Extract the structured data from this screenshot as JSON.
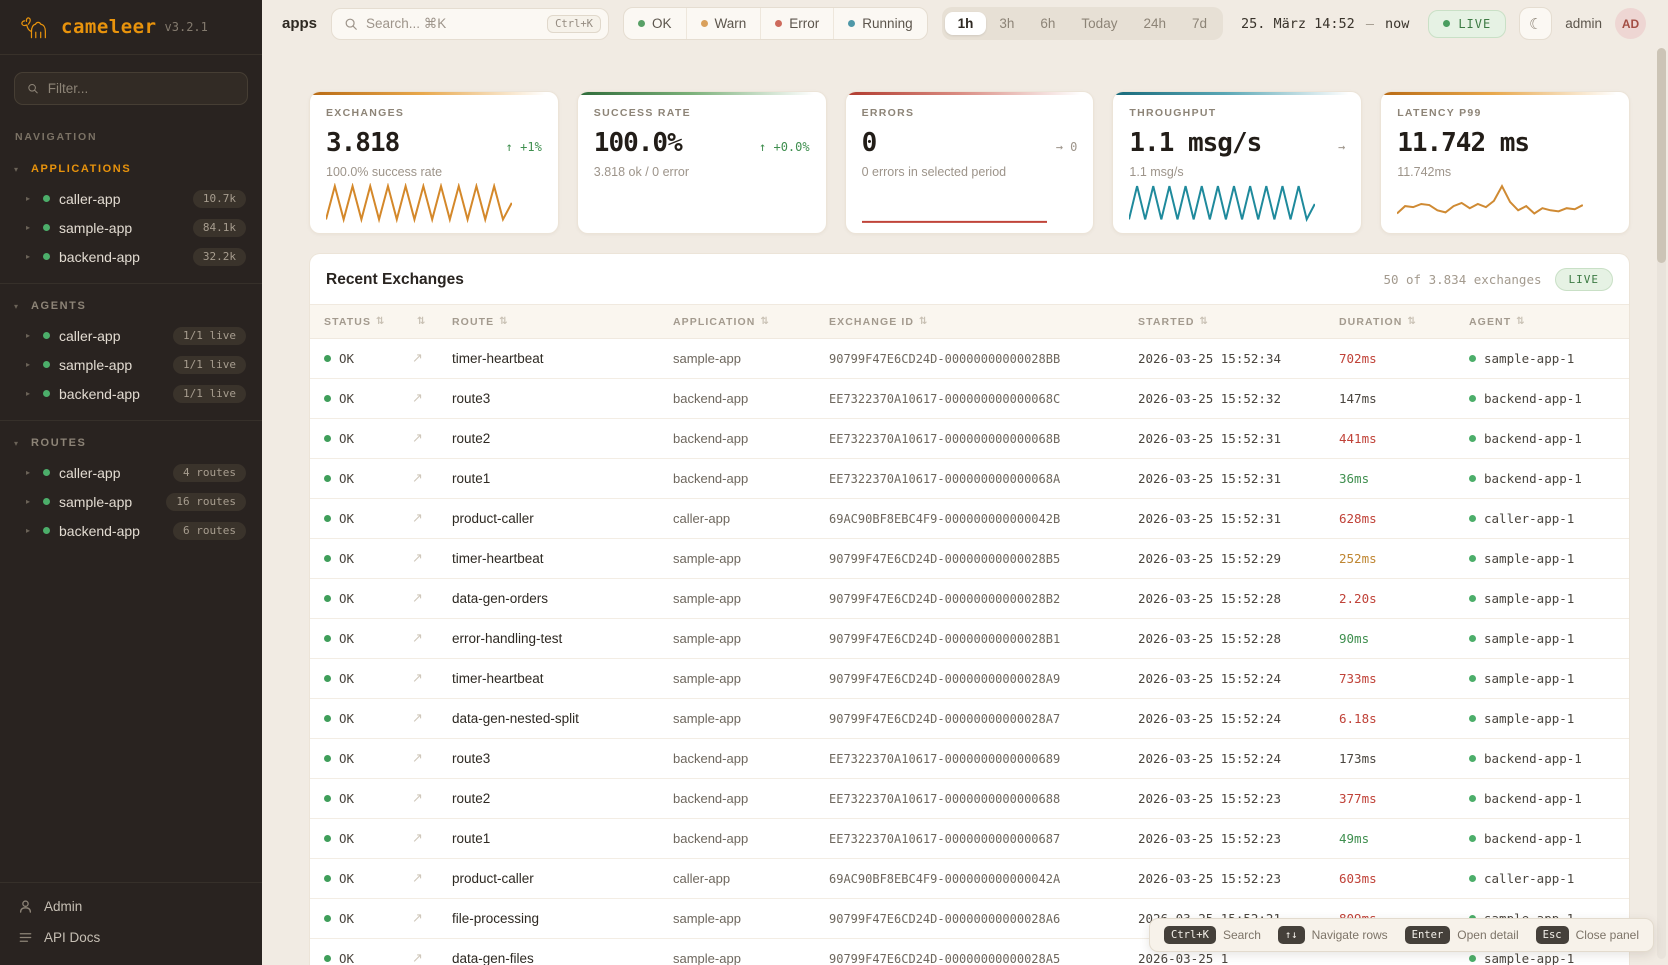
{
  "icons": {
    "section_caret": "▾",
    "item_caret": "▸",
    "sort": "⇅",
    "open_detail": "↗",
    "moon": "☾"
  },
  "sidebar": {
    "logo": {
      "name": "cameleer",
      "version": "v3.2.1"
    },
    "filter_placeholder": "Filter...",
    "nav_label": "NAVIGATION",
    "sections": [
      {
        "label": "APPLICATIONS",
        "active": true,
        "items": [
          {
            "name": "caller-app",
            "badge": "10.7k"
          },
          {
            "name": "sample-app",
            "badge": "84.1k"
          },
          {
            "name": "backend-app",
            "badge": "32.2k"
          }
        ]
      },
      {
        "label": "AGENTS",
        "active": false,
        "items": [
          {
            "name": "caller-app",
            "badge": "1/1 live"
          },
          {
            "name": "sample-app",
            "badge": "1/1 live"
          },
          {
            "name": "backend-app",
            "badge": "1/1 live"
          }
        ]
      },
      {
        "label": "ROUTES",
        "active": false,
        "items": [
          {
            "name": "caller-app",
            "badge": "4 routes"
          },
          {
            "name": "sample-app",
            "badge": "16 routes"
          },
          {
            "name": "backend-app",
            "badge": "6 routes"
          }
        ]
      }
    ],
    "footer": [
      {
        "label": "Admin"
      },
      {
        "label": "API Docs"
      }
    ]
  },
  "header": {
    "context": "apps",
    "search": {
      "placeholder": "Search... ⌘K",
      "kbd": "Ctrl+K"
    },
    "status_filters": [
      {
        "label": "OK",
        "color": "#58a066"
      },
      {
        "label": "Warn",
        "color": "#d9a05b"
      },
      {
        "label": "Error",
        "color": "#cd6a5c"
      },
      {
        "label": "Running",
        "color": "#4f98a8"
      }
    ],
    "time_ranges": [
      {
        "label": "1h",
        "active": true
      },
      {
        "label": "3h",
        "active": false
      },
      {
        "label": "6h",
        "active": false
      },
      {
        "label": "Today",
        "active": false
      },
      {
        "label": "24h",
        "active": false
      },
      {
        "label": "7d",
        "active": false
      }
    ],
    "date_from": "25. März 14:52",
    "date_sep": "—",
    "date_to": "now",
    "live_label": "LIVE",
    "user": "admin",
    "avatar": "AD"
  },
  "cards": [
    {
      "label": "EXCHANGES",
      "value": "3.818",
      "trend": {
        "text": "↑ +1%",
        "dir": "up"
      },
      "subtitle": "100.0% success rate",
      "accent": "orange",
      "sparkline": {
        "color": "#d4882a",
        "values": [
          2,
          30,
          2,
          30,
          2,
          30,
          2,
          30,
          2,
          30,
          2,
          30,
          2,
          30,
          2,
          30,
          2,
          30,
          2,
          30,
          2,
          16
        ]
      }
    },
    {
      "label": "SUCCESS RATE",
      "value": "100.0%",
      "trend": {
        "text": "↑ +0.0%",
        "dir": "up"
      },
      "subtitle": "3.818 ok / 0 error",
      "accent": "green",
      "sparkline": null
    },
    {
      "label": "ERRORS",
      "value": "0",
      "trend": {
        "text": "→ 0",
        "dir": "flat"
      },
      "subtitle": "0 errors in selected period",
      "accent": "red",
      "sparkline": {
        "color": "#c0443a",
        "values": [
          0,
          0
        ]
      }
    },
    {
      "label": "THROUGHPUT",
      "value": "1.1 msg/s",
      "trend": {
        "text": "→",
        "dir": "flat"
      },
      "subtitle": "1.1 msg/s",
      "accent": "teal",
      "sparkline": {
        "color": "#1f8a9c",
        "values": [
          2,
          28,
          2,
          28,
          2,
          28,
          2,
          28,
          2,
          28,
          2,
          28,
          2,
          28,
          2,
          28,
          2,
          28,
          2,
          28,
          2,
          28,
          2,
          14
        ]
      }
    },
    {
      "label": "LATENCY P99",
      "value": "11.742 ms",
      "trend": {
        "text": "",
        "dir": "flat"
      },
      "subtitle": "11.742ms",
      "accent": "orange",
      "sparkline": {
        "color": "#cf8a33",
        "values": [
          8,
          15,
          14,
          17,
          16,
          11,
          9,
          15,
          18,
          13,
          17,
          14,
          20,
          34,
          19,
          11,
          15,
          8,
          13,
          11,
          10,
          13,
          12,
          16
        ]
      }
    }
  ],
  "table": {
    "title": "Recent Exchanges",
    "count_text": "50 of 3.834 exchanges",
    "live_label": "LIVE",
    "columns": [
      {
        "label": "STATUS"
      },
      {
        "label": ""
      },
      {
        "label": "ROUTE"
      },
      {
        "label": "APPLICATION"
      },
      {
        "label": "EXCHANGE ID"
      },
      {
        "label": "STARTED"
      },
      {
        "label": "DURATION"
      },
      {
        "label": "AGENT"
      }
    ],
    "rows": [
      {
        "status": "OK",
        "route": "timer-heartbeat",
        "application": "sample-app",
        "exchange_id": "90799F47E6CD24D-00000000000028BB",
        "started": "2026-03-25 15:52:34",
        "duration": "702ms",
        "duration_level": "high",
        "agent": "sample-app-1"
      },
      {
        "status": "OK",
        "route": "route3",
        "application": "backend-app",
        "exchange_id": "EE7322370A10617-000000000000068C",
        "started": "2026-03-25 15:52:32",
        "duration": "147ms",
        "duration_level": "mid",
        "agent": "backend-app-1"
      },
      {
        "status": "OK",
        "route": "route2",
        "application": "backend-app",
        "exchange_id": "EE7322370A10617-000000000000068B",
        "started": "2026-03-25 15:52:31",
        "duration": "441ms",
        "duration_level": "high",
        "agent": "backend-app-1"
      },
      {
        "status": "OK",
        "route": "route1",
        "application": "backend-app",
        "exchange_id": "EE7322370A10617-000000000000068A",
        "started": "2026-03-25 15:52:31",
        "duration": "36ms",
        "duration_level": "low",
        "agent": "backend-app-1"
      },
      {
        "status": "OK",
        "route": "product-caller",
        "application": "caller-app",
        "exchange_id": "69AC90BF8EBC4F9-000000000000042B",
        "started": "2026-03-25 15:52:31",
        "duration": "628ms",
        "duration_level": "high",
        "agent": "caller-app-1"
      },
      {
        "status": "OK",
        "route": "timer-heartbeat",
        "application": "sample-app",
        "exchange_id": "90799F47E6CD24D-00000000000028B5",
        "started": "2026-03-25 15:52:29",
        "duration": "252ms",
        "duration_level": "warn",
        "agent": "sample-app-1"
      },
      {
        "status": "OK",
        "route": "data-gen-orders",
        "application": "sample-app",
        "exchange_id": "90799F47E6CD24D-00000000000028B2",
        "started": "2026-03-25 15:52:28",
        "duration": "2.20s",
        "duration_level": "high",
        "agent": "sample-app-1"
      },
      {
        "status": "OK",
        "route": "error-handling-test",
        "application": "sample-app",
        "exchange_id": "90799F47E6CD24D-00000000000028B1",
        "started": "2026-03-25 15:52:28",
        "duration": "90ms",
        "duration_level": "low",
        "agent": "sample-app-1"
      },
      {
        "status": "OK",
        "route": "timer-heartbeat",
        "application": "sample-app",
        "exchange_id": "90799F47E6CD24D-00000000000028A9",
        "started": "2026-03-25 15:52:24",
        "duration": "733ms",
        "duration_level": "high",
        "agent": "sample-app-1"
      },
      {
        "status": "OK",
        "route": "data-gen-nested-split",
        "application": "sample-app",
        "exchange_id": "90799F47E6CD24D-00000000000028A7",
        "started": "2026-03-25 15:52:24",
        "duration": "6.18s",
        "duration_level": "high",
        "agent": "sample-app-1"
      },
      {
        "status": "OK",
        "route": "route3",
        "application": "backend-app",
        "exchange_id": "EE7322370A10617-0000000000000689",
        "started": "2026-03-25 15:52:24",
        "duration": "173ms",
        "duration_level": "mid",
        "agent": "backend-app-1"
      },
      {
        "status": "OK",
        "route": "route2",
        "application": "backend-app",
        "exchange_id": "EE7322370A10617-0000000000000688",
        "started": "2026-03-25 15:52:23",
        "duration": "377ms",
        "duration_level": "high",
        "agent": "backend-app-1"
      },
      {
        "status": "OK",
        "route": "route1",
        "application": "backend-app",
        "exchange_id": "EE7322370A10617-0000000000000687",
        "started": "2026-03-25 15:52:23",
        "duration": "49ms",
        "duration_level": "low",
        "agent": "backend-app-1"
      },
      {
        "status": "OK",
        "route": "product-caller",
        "application": "caller-app",
        "exchange_id": "69AC90BF8EBC4F9-000000000000042A",
        "started": "2026-03-25 15:52:23",
        "duration": "603ms",
        "duration_level": "high",
        "agent": "caller-app-1"
      },
      {
        "status": "OK",
        "route": "file-processing",
        "application": "sample-app",
        "exchange_id": "90799F47E6CD24D-00000000000028A6",
        "started": "2026-03-25 15:52:21",
        "duration": "809ms",
        "duration_level": "high",
        "agent": "sample-app-1"
      },
      {
        "status": "OK",
        "route": "data-gen-files",
        "application": "sample-app",
        "exchange_id": "90799F47E6CD24D-00000000000028A5",
        "started": "2026-03-25 1",
        "duration": "",
        "duration_level": "mid",
        "agent": "sample-app-1"
      }
    ]
  },
  "shortcuts": [
    {
      "key": "Ctrl+K",
      "label": "Search"
    },
    {
      "key": "↑↓",
      "label": "Navigate rows"
    },
    {
      "key": "Enter",
      "label": "Open detail"
    },
    {
      "key": "Esc",
      "label": "Close panel"
    }
  ]
}
